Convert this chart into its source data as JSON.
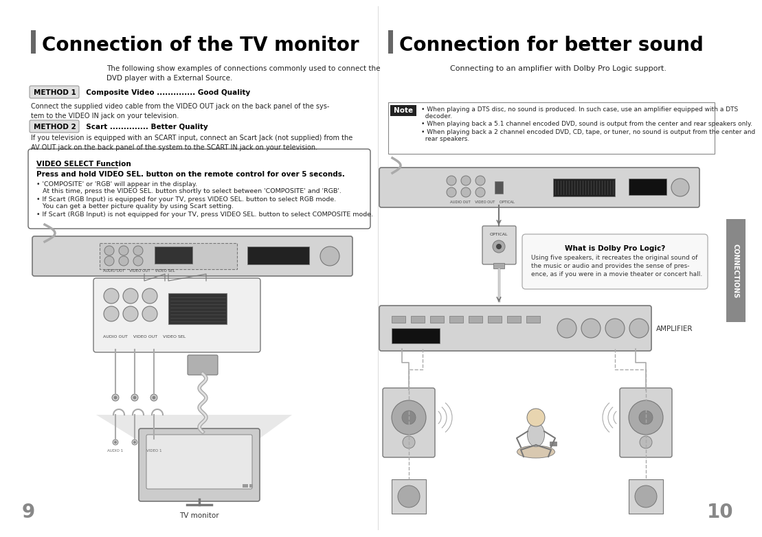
{
  "bg_color": "#ffffff",
  "left_title": "Connection of the TV monitor",
  "right_title": "Connection for better sound",
  "title_bar_color": "#666666",
  "title_fontsize": 20,
  "page_left": "9",
  "page_right": "10",
  "left_intro": "The following show examples of connections commonly used to connect the\nDVD player with a External Source.",
  "method1_label": "METHOD 1",
  "method1_text": "  Composite Video .............. Good Quality",
  "method1_body": "Connect the supplied video cable from the VIDEO OUT jack on the back panel of the sys-\ntem to the VIDEO IN jack on your television.",
  "method2_label": "METHOD 2",
  "method2_text": "  Scart .............. Better Quality",
  "method2_body": "If you television is equipped with an SCART input, connect an Scart Jack (not supplied) from the\nAV OUT jack on the back panel of the system to the SCART IN jack on your television.",
  "videosel_title": "VIDEO SELECT Function",
  "videosel_bold": "Press and hold VIDEO SEL. button on the remote control for over 5 seconds.",
  "videosel_b1a": "• 'COMPOSITE' or 'RGB' will appear in the display.",
  "videosel_b1b": "   At this time, press the VIDEO SEL. button shortly to select between 'COMPOSITE' and 'RGB'.",
  "videosel_b2a": "• If Scart (RGB Input) is equipped for your TV, press VIDEO SEL. button to select RGB mode.",
  "videosel_b2b": "   You can get a better picture quality by using Scart setting.",
  "videosel_b3": "• If Scart (RGB Input) is not equipped for your TV, press VIDEO SEL. button to select COMPOSITE mode.",
  "tv_monitor_label": "TV monitor",
  "right_intro": "Connecting to an amplifier with Dolby Pro Logic support.",
  "note_label": "Note",
  "note_b1a": "• When playing a DTS disc, no sound is produced. In such case, use an amplifier equipped with a DTS",
  "note_b1b": "  decoder.",
  "note_b2": "• When playing back a 5.1 channel encoded DVD, sound is output from the center and rear speakers only.",
  "note_b3a": "• When playing back a 2 channel encoded DVD, CD, tape, or tuner, no sound is output from the center and",
  "note_b3b": "  rear speakers.",
  "dolby_title": "What is Dolby Pro Logic?",
  "dolby_body": "Using five speakers, it recreates the original sound of\nthe music or audio and provides the sense of pres-\nence, as if you were in a movie theater or concert hall.",
  "amplifier_label": "AMPLIFIER",
  "connections_label": "CONNECTIONS",
  "divider_color": "#dddddd",
  "gray_light": "#d4d4d4",
  "gray_mid": "#aaaaaa",
  "gray_dark": "#777777",
  "gray_darker": "#555555",
  "line_color": "#888888"
}
